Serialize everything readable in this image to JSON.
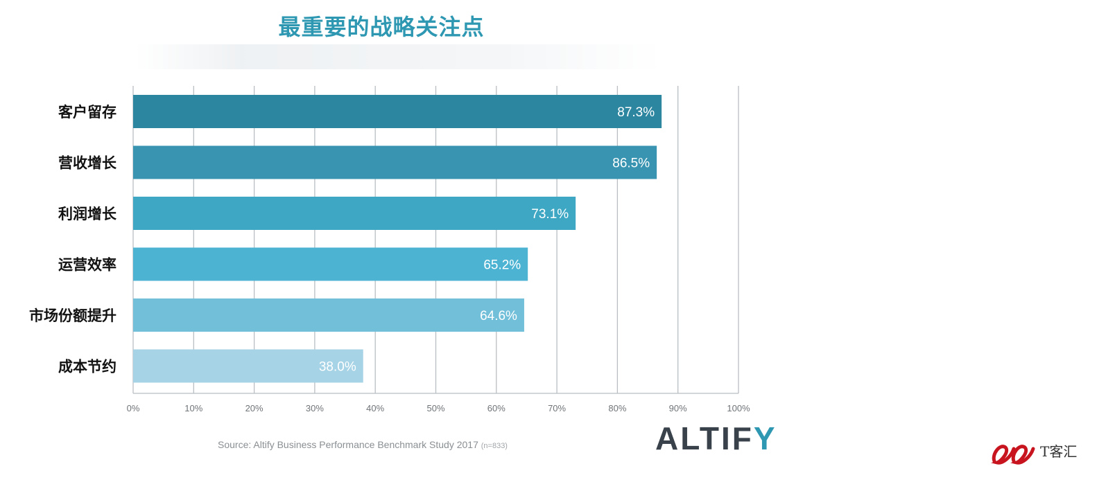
{
  "title": "最重要的战略关注点",
  "source": {
    "text": "Source: Altify Business Performance Benchmark Study 2017",
    "n": "(n=833)"
  },
  "logo": {
    "text": "ALTIF",
    "accent": "Y",
    "accent_color": "#2e97b2"
  },
  "watermark": {
    "text": "T客汇"
  },
  "chart_data": {
    "type": "bar",
    "orientation": "horizontal",
    "categories": [
      "客户留存",
      "营收增长",
      "利润增长",
      "运营效率",
      "市场份额提升",
      "成本节约"
    ],
    "values": [
      87.3,
      86.5,
      73.1,
      65.2,
      64.6,
      38.0
    ],
    "value_labels": [
      "87.3%",
      "86.5%",
      "73.1%",
      "65.2%",
      "64.6%",
      "38.0%"
    ],
    "bar_colors": [
      "#2c86a0",
      "#3894b0",
      "#3ea7c4",
      "#4db3d3",
      "#72bfd9",
      "#a6d3e5"
    ],
    "xlim": [
      0,
      100
    ],
    "xticks": [
      "0%",
      "10%",
      "20%",
      "30%",
      "40%",
      "50%",
      "60%",
      "70%",
      "80%",
      "90%",
      "100%"
    ],
    "grid": true,
    "title": "最重要的战略关注点"
  }
}
